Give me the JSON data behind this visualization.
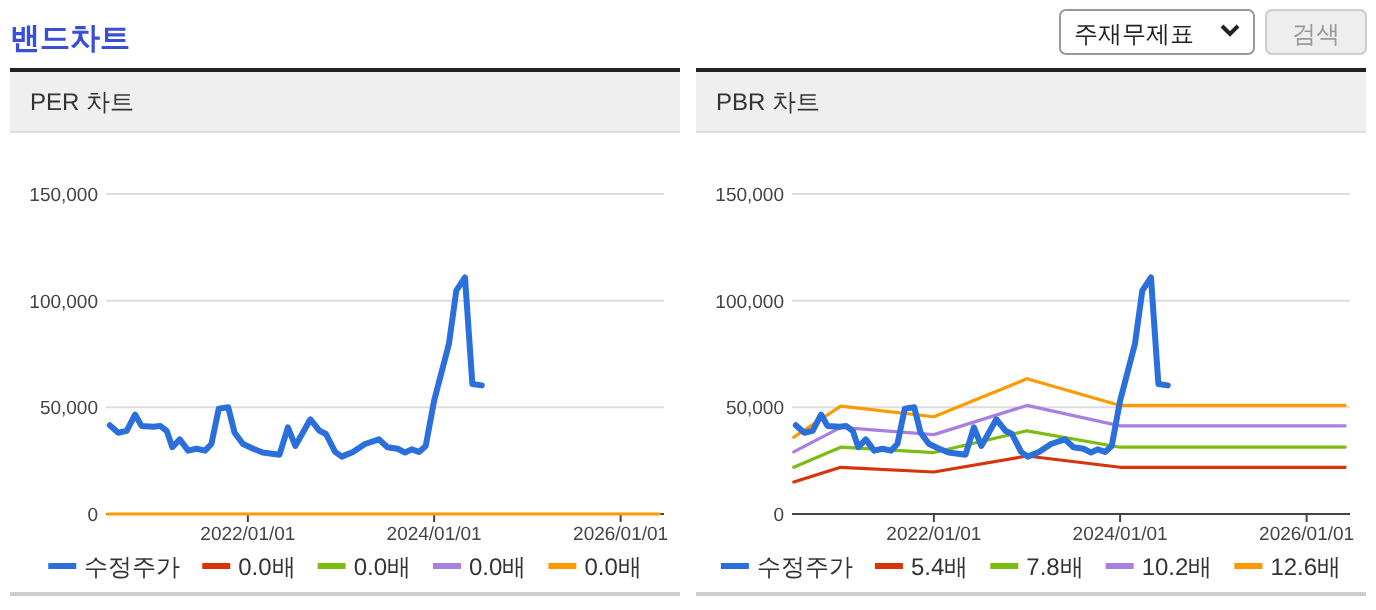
{
  "chart_data": [
    {
      "type": "line",
      "title": "PER 차트",
      "annotations": [
        "밴드차트",
        "주재무제표",
        "검색"
      ],
      "grid": "y",
      "legend": "bottom",
      "xlim": [
        "2020-06-24",
        "2026-06-20"
      ],
      "ylim": [
        0,
        150000
      ],
      "xticks": [
        {
          "value": "2022-01-01",
          "label": "2022/01/01"
        },
        {
          "value": "2024-01-01",
          "label": "2024/01/01"
        },
        {
          "value": "2026-01-01",
          "label": "2026/01/01"
        }
      ],
      "yticks": [
        0,
        {
          "value": 50000,
          "label": "50,000"
        },
        {
          "value": 100000,
          "label": "100,000"
        },
        {
          "value": 150000,
          "label": "150,000"
        }
      ],
      "series": [
        {
          "name": "수정주가",
          "color": "#2b6fdc",
          "x": [
            "2020-07-09",
            "2020-08-11",
            "2020-09-13",
            "2020-10-16",
            "2020-11-10",
            "2020-12-28",
            "2021-01-22",
            "2021-02-17",
            "2021-03-11",
            "2021-04-09",
            "2021-05-12",
            "2021-06-14",
            "2021-07-17",
            "2021-08-11",
            "2021-09-09",
            "2021-10-16",
            "2021-11-10",
            "2021-12-13",
            "2022-01-22",
            "2022-02-28",
            "2022-05-05",
            "2022-06-07",
            "2022-07-06",
            "2022-09-03",
            "2022-10-09",
            "2022-11-03",
            "2022-12-09",
            "2023-01-04",
            "2023-02-17",
            "2023-04-05",
            "2023-05-30",
            "2023-07-02",
            "2023-08-11",
            "2023-09-09",
            "2023-10-05",
            "2023-11-03",
            "2023-11-29",
            "2024-01-01",
            "2024-02-28",
            "2024-03-28",
            "2024-05-01",
            "2024-05-30",
            "2024-07-06"
          ],
          "values": [
            41600,
            38100,
            39000,
            46600,
            41300,
            40900,
            41300,
            39000,
            31300,
            35000,
            29700,
            30600,
            29700,
            32800,
            49400,
            50000,
            38100,
            32800,
            30600,
            28800,
            27800,
            40600,
            31900,
            44400,
            39000,
            37500,
            29100,
            26900,
            29100,
            32800,
            35000,
            31300,
            30600,
            28800,
            30300,
            29100,
            31900,
            53100,
            79700,
            104700,
            110900,
            60900,
            60300
          ]
        },
        {
          "name": "0.0배",
          "color": "#d8330b"
        },
        {
          "name": "0.0배",
          "color": "#7cbd12"
        },
        {
          "name": "0.0배",
          "color": "#a97fe0"
        },
        {
          "name": "0.0배",
          "color": "#ff9a00",
          "x": [
            "2020-07-01",
            "2026-06-01"
          ],
          "values": [
            0,
            0
          ]
        }
      ]
    },
    {
      "type": "line",
      "title": "PBR 차트",
      "grid": "y",
      "legend": "bottom",
      "xlim": [
        "2020-06-24",
        "2026-06-20"
      ],
      "ylim": [
        0,
        150000
      ],
      "xticks": [
        {
          "value": "2022-01-01",
          "label": "2022/01/01"
        },
        {
          "value": "2024-01-01",
          "label": "2024/01/01"
        },
        {
          "value": "2026-01-01",
          "label": "2026/01/01"
        }
      ],
      "yticks": [
        0,
        {
          "value": 50000,
          "label": "50,000"
        },
        {
          "value": 100000,
          "label": "100,000"
        },
        {
          "value": 150000,
          "label": "150,000"
        }
      ],
      "series": [
        {
          "name": "수정주가",
          "color": "#2b6fdc",
          "x": [
            "2020-07-09",
            "2020-08-11",
            "2020-09-13",
            "2020-10-16",
            "2020-11-10",
            "2020-12-28",
            "2021-01-22",
            "2021-02-17",
            "2021-03-11",
            "2021-04-09",
            "2021-05-12",
            "2021-06-14",
            "2021-07-17",
            "2021-08-11",
            "2021-09-09",
            "2021-10-16",
            "2021-11-10",
            "2021-12-13",
            "2022-01-22",
            "2022-02-28",
            "2022-05-05",
            "2022-06-07",
            "2022-07-06",
            "2022-09-03",
            "2022-10-09",
            "2022-11-03",
            "2022-12-09",
            "2023-01-04",
            "2023-02-17",
            "2023-04-05",
            "2023-05-30",
            "2023-07-02",
            "2023-08-11",
            "2023-09-09",
            "2023-10-05",
            "2023-11-03",
            "2023-11-29",
            "2024-01-01",
            "2024-02-28",
            "2024-03-28",
            "2024-05-01",
            "2024-05-30",
            "2024-07-06"
          ],
          "values": [
            41600,
            38100,
            39000,
            46600,
            41300,
            40900,
            41300,
            39000,
            31300,
            35000,
            29700,
            30600,
            29700,
            32800,
            49400,
            50000,
            38100,
            32800,
            30600,
            28800,
            27800,
            40600,
            31900,
            44400,
            39000,
            37500,
            29100,
            26900,
            29100,
            32800,
            35000,
            31300,
            30600,
            28800,
            30300,
            29100,
            31900,
            53100,
            79700,
            104700,
            110900,
            60900,
            60300
          ]
        },
        {
          "name": "5.4배",
          "color": "#d8330b",
          "x": [
            "2020-07-01",
            "2021-01-01",
            "2022-01-01",
            "2023-01-01",
            "2024-01-01",
            "2026-06-01"
          ],
          "values": [
            15000,
            21900,
            19700,
            27200,
            21900,
            21900
          ]
        },
        {
          "name": "7.8배",
          "color": "#7cbd12",
          "x": [
            "2020-07-01",
            "2021-01-01",
            "2022-01-01",
            "2023-01-01",
            "2024-01-01",
            "2026-06-01"
          ],
          "values": [
            21900,
            31300,
            28800,
            39000,
            31300,
            31300
          ]
        },
        {
          "name": "10.2배",
          "color": "#a97fe0",
          "x": [
            "2020-07-01",
            "2021-01-01",
            "2022-01-01",
            "2023-01-01",
            "2024-01-01",
            "2026-06-01"
          ],
          "values": [
            29100,
            40600,
            37200,
            50900,
            41300,
            41300
          ]
        },
        {
          "name": "12.6배",
          "color": "#ff9a00",
          "x": [
            "2020-07-01",
            "2021-01-01",
            "2022-01-01",
            "2023-01-01",
            "2024-01-01",
            "2026-06-01"
          ],
          "values": [
            36000,
            50600,
            45600,
            63400,
            50900,
            50900
          ]
        }
      ]
    }
  ]
}
